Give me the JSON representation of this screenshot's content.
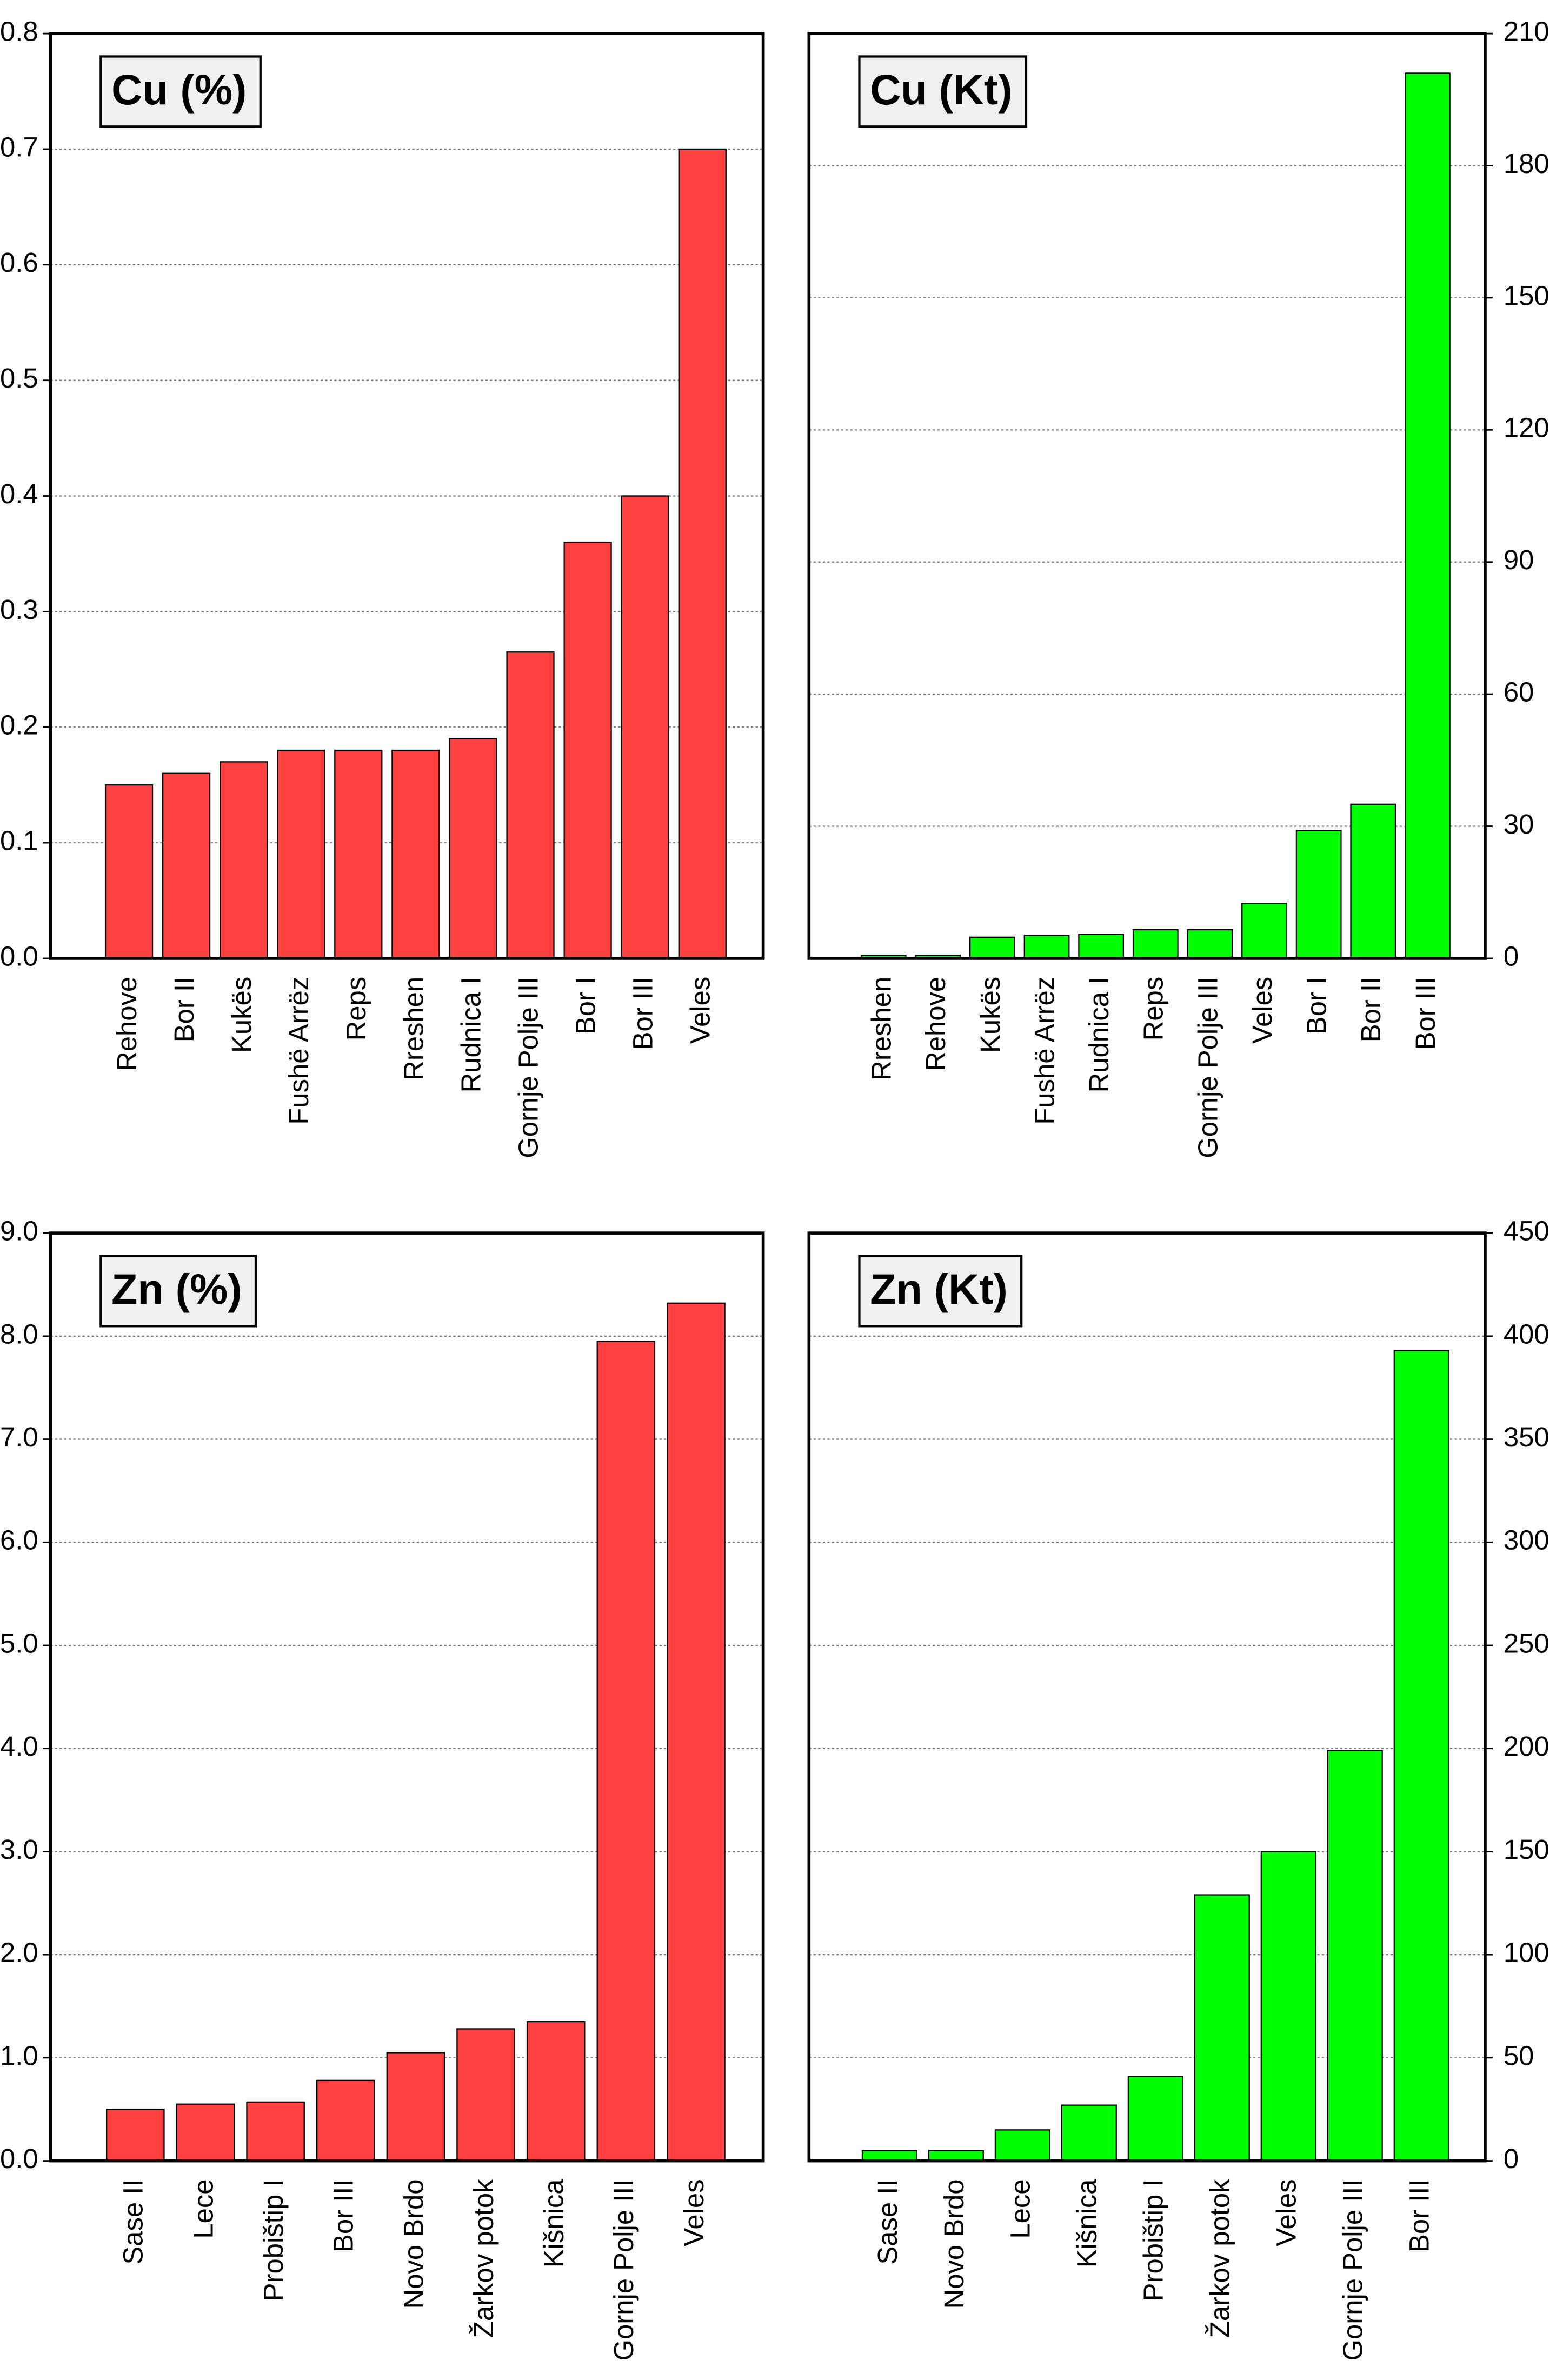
{
  "chart_data": [
    {
      "type": "bar",
      "title": "Cu (%)",
      "color": "#ff4040",
      "grid": true,
      "axis_side": "left",
      "categories": [
        "Rehove",
        "Bor II",
        "Kukës",
        "Fushë Arrëz",
        "Reps",
        "Rreshen",
        "Rudnica I",
        "Gornje Polje III",
        "Bor I",
        "Bor III",
        "Veles"
      ],
      "values": [
        0.15,
        0.16,
        0.17,
        0.18,
        0.18,
        0.18,
        0.19,
        0.265,
        0.36,
        0.4,
        0.7
      ],
      "ylim": [
        0,
        0.8
      ],
      "yticks": [
        {
          "value": 0,
          "label": "0.0"
        },
        0.1,
        0.2,
        0.3,
        0.4,
        0.5,
        0.6,
        0.7,
        0.8
      ]
    },
    {
      "type": "bar",
      "title": "Cu (Kt)",
      "color": "#00ff00",
      "grid": true,
      "axis_side": "right",
      "categories": [
        "Rreshen",
        "Rehove",
        "Kukës",
        "Fushë Arrëz",
        "Rudnica I",
        "Reps",
        "Gornje Polje III",
        "Veles",
        "Bor I",
        "Bor II",
        "Bor III"
      ],
      "values": [
        0.7,
        0.7,
        4.8,
        5.2,
        5.5,
        6.5,
        6.5,
        12.5,
        29,
        35,
        201
      ],
      "ylim": [
        0,
        210
      ],
      "yticks": [
        0,
        30,
        60,
        90,
        120,
        150,
        180,
        210
      ]
    },
    {
      "type": "bar",
      "title": "Zn (%)",
      "color": "#ff4040",
      "grid": true,
      "axis_side": "left",
      "categories": [
        "Sase II",
        "Lece",
        "Probištip I",
        "Bor III",
        "Novo Brdo",
        "Žarkov potok",
        "Kišnica",
        "Gornje Polje III",
        "Veles"
      ],
      "values": [
        0.5,
        0.55,
        0.57,
        0.78,
        1.05,
        1.28,
        1.35,
        7.95,
        8.32
      ],
      "ylim": [
        0,
        9
      ],
      "yticks": [
        {
          "value": 0,
          "label": "0.0"
        },
        {
          "value": 1,
          "label": "1.0"
        },
        {
          "value": 2,
          "label": "2.0"
        },
        {
          "value": 3,
          "label": "3.0"
        },
        {
          "value": 4,
          "label": "4.0"
        },
        {
          "value": 5,
          "label": "5.0"
        },
        {
          "value": 6,
          "label": "6.0"
        },
        {
          "value": 7,
          "label": "7.0"
        },
        {
          "value": 8,
          "label": "8.0"
        },
        {
          "value": 9,
          "label": "9.0"
        }
      ]
    },
    {
      "type": "bar",
      "title": "Zn (Kt)",
      "color": "#00ff00",
      "grid": true,
      "axis_side": "right",
      "categories": [
        "Sase II",
        "Novo Brdo",
        "Lece",
        "Kišnica",
        "Probištip I",
        "Žarkov potok",
        "Veles",
        "Gornje Polje III",
        "Bor III"
      ],
      "values": [
        5,
        5,
        15,
        27,
        41,
        129,
        150,
        199,
        393
      ],
      "ylim": [
        0,
        450
      ],
      "yticks": [
        0,
        50,
        100,
        150,
        200,
        250,
        300,
        350,
        400,
        450
      ]
    }
  ]
}
